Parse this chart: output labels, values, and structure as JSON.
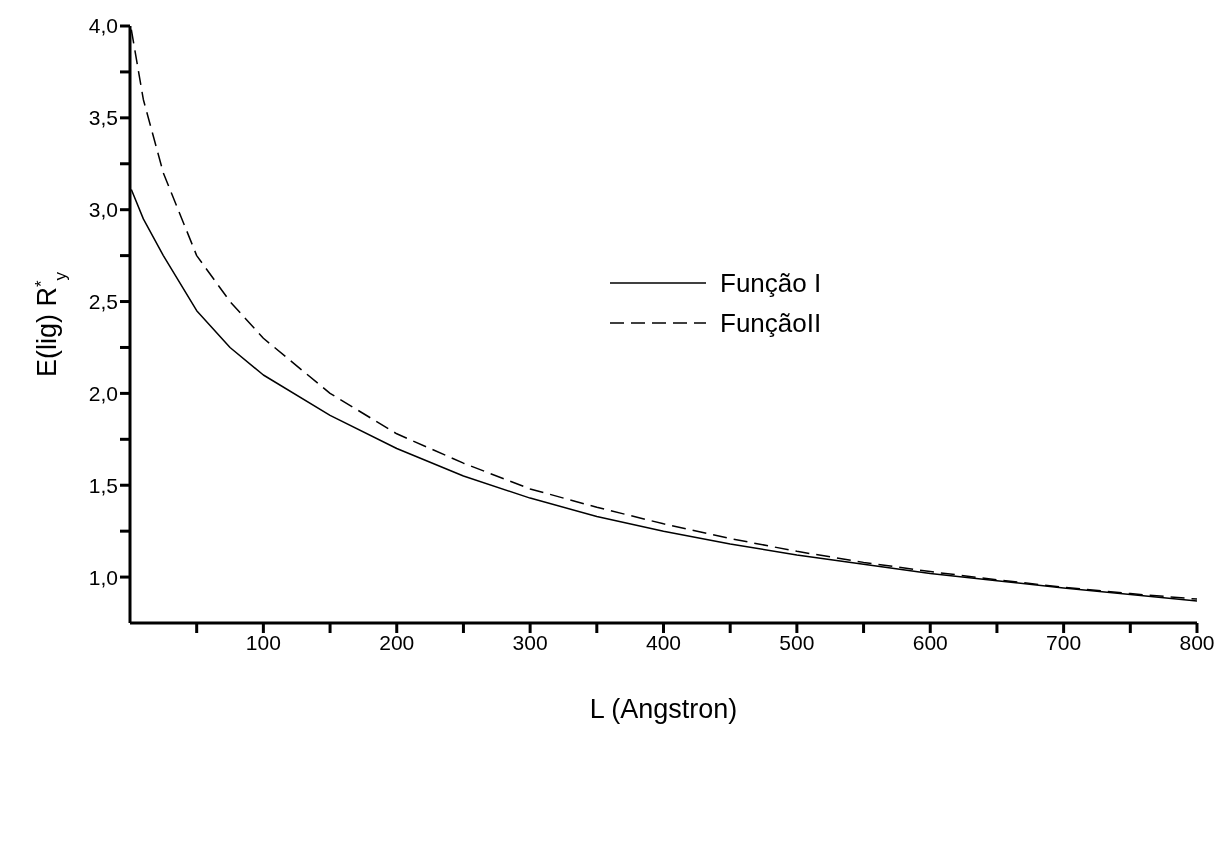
{
  "chart_data": {
    "type": "line",
    "xlabel": "L (Angstron)",
    "ylabel": "E(lig) R$^{*}$$_{y}$",
    "x": [
      1,
      10,
      25,
      50,
      75,
      100,
      150,
      200,
      250,
      300,
      350,
      400,
      450,
      500,
      550,
      600,
      650,
      700,
      750,
      800
    ],
    "series": [
      {
        "name": "Função I",
        "color": "#000000",
        "line_style": "solid",
        "values": [
          3.11,
          2.95,
          2.75,
          2.45,
          2.25,
          2.1,
          1.88,
          1.7,
          1.55,
          1.43,
          1.33,
          1.25,
          1.18,
          1.12,
          1.07,
          1.02,
          0.98,
          0.94,
          0.905,
          0.87
        ]
      },
      {
        "name": "FunçãoII",
        "color": "#000000",
        "line_style": "dashed",
        "values": [
          3.98,
          3.6,
          3.2,
          2.75,
          2.5,
          2.3,
          2.0,
          1.78,
          1.62,
          1.48,
          1.38,
          1.29,
          1.21,
          1.14,
          1.08,
          1.03,
          0.985,
          0.945,
          0.91,
          0.88
        ]
      }
    ],
    "xlim": [
      0,
      800
    ],
    "xticks": [
      {
        "value": 50,
        "label": null
      },
      100,
      {
        "value": 150,
        "label": null
      },
      200,
      {
        "value": 250,
        "label": null
      },
      300,
      {
        "value": 350,
        "label": null
      },
      400,
      {
        "value": 450,
        "label": null
      },
      500,
      {
        "value": 550,
        "label": null
      },
      600,
      {
        "value": 650,
        "label": null
      },
      700,
      {
        "value": 750,
        "label": null
      },
      800
    ],
    "ylim": [
      0.75,
      4.0
    ],
    "yticks": [
      {
        "value": 1.0,
        "label": "1,0"
      },
      {
        "value": 1.25,
        "label": null
      },
      {
        "value": 1.5,
        "label": "1,5"
      },
      {
        "value": 1.75,
        "label": null
      },
      {
        "value": 2.0,
        "label": "2,0"
      },
      {
        "value": 2.25,
        "label": null
      },
      {
        "value": 2.5,
        "label": "2,5"
      },
      {
        "value": 2.75,
        "label": null
      },
      {
        "value": 3.0,
        "label": "3,0"
      },
      {
        "value": 3.25,
        "label": null
      },
      {
        "value": 3.5,
        "label": "3,5"
      },
      {
        "value": 3.75,
        "label": null
      },
      {
        "value": 4.0,
        "label": "4,0"
      }
    ],
    "legend": "top"
  }
}
